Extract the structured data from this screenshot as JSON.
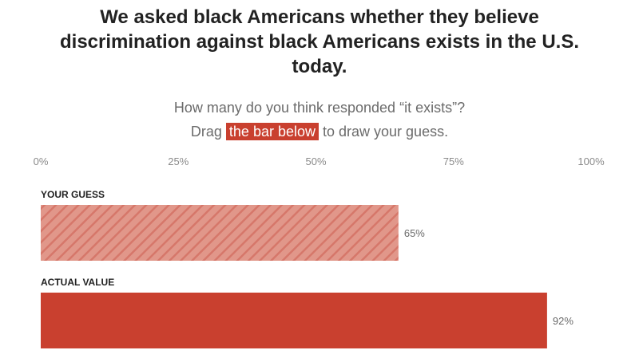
{
  "header": {
    "title": "We asked black Americans whether they believe discrimination against black Americans exists in the U.S. today."
  },
  "prompt": {
    "line1": "How many do you think responded “it exists”?",
    "line2_before": "Drag ",
    "line2_highlight": "the bar below",
    "line2_after": " to draw your guess."
  },
  "colors": {
    "accent": "#c9402f",
    "guess_fill": "#e1978a",
    "guess_stripe": "#d6776a"
  },
  "chart_data": {
    "type": "bar",
    "orientation": "horizontal",
    "xlim": [
      0,
      100
    ],
    "ticks": [
      "0%",
      "25%",
      "50%",
      "75%",
      "100%"
    ],
    "tick_values": [
      0,
      25,
      50,
      75,
      100
    ],
    "bars": [
      {
        "label": "YOUR GUESS",
        "value": 65,
        "value_label": "65%",
        "style": "hatched"
      },
      {
        "label": "ACTUAL VALUE",
        "value": 92,
        "value_label": "92%",
        "style": "solid"
      }
    ]
  }
}
